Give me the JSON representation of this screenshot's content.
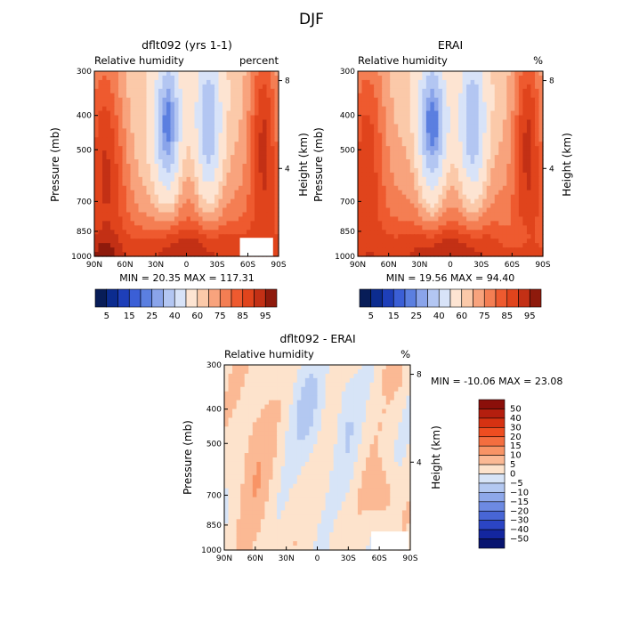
{
  "figure": {
    "title": "DJF"
  },
  "chart_data": [
    {
      "type": "heatmap",
      "panel_title": "dflt092 (yrs 1-1)",
      "left_title": "Relative humidity",
      "right_title": "percent",
      "ylabel": "Pressure (mb)",
      "ylabel_right": "Height (km)",
      "x": [
        -90,
        90
      ],
      "x_ticks": [
        "90N",
        "60N",
        "30N",
        "0",
        "30S",
        "60S",
        "90S"
      ],
      "y_ticks": [
        300,
        400,
        500,
        700,
        850,
        1000
      ],
      "y_right_ticks": [
        8,
        4
      ],
      "stats": "MIN =  20.35   MAX = 117.31",
      "min": 20.35,
      "max": 117.31,
      "colorbar": {
        "orientation": "horizontal",
        "levels": [
          5,
          10,
          15,
          20,
          25,
          30,
          40,
          50,
          60,
          65,
          70,
          75,
          80,
          85,
          90,
          95
        ],
        "labels": [
          "5",
          "15",
          "25",
          "40",
          "60",
          "75",
          "85",
          "95"
        ],
        "colors": [
          "#081d58",
          "#0c2c8f",
          "#1e3fb9",
          "#3b5fd6",
          "#5b7fe0",
          "#8aa4ea",
          "#b3c6f2",
          "#d8e3f8",
          "#fde4d2",
          "#fbc9a9",
          "#f8a37d",
          "#f47e53",
          "#ee5a2f",
          "#e0441c",
          "#c33015",
          "#8e1a0c"
        ]
      }
    },
    {
      "type": "heatmap",
      "panel_title": "ERAI",
      "left_title": "Relative humidity",
      "right_title": "%",
      "ylabel": "Pressure (mb)",
      "ylabel_right": "Height (km)",
      "x": [
        -90,
        90
      ],
      "x_ticks": [
        "90N",
        "60N",
        "30N",
        "0",
        "30S",
        "60S",
        "90S"
      ],
      "y_ticks": [
        300,
        400,
        500,
        700,
        850,
        1000
      ],
      "y_right_ticks": [
        8,
        4
      ],
      "stats": "MIN =  19.56   MAX =  94.40",
      "min": 19.56,
      "max": 94.4,
      "colorbar": {
        "orientation": "horizontal",
        "levels": [
          5,
          10,
          15,
          20,
          25,
          30,
          40,
          50,
          60,
          65,
          70,
          75,
          80,
          85,
          90,
          95
        ],
        "labels": [
          "5",
          "15",
          "25",
          "40",
          "60",
          "75",
          "85",
          "95"
        ],
        "colors": [
          "#081d58",
          "#0c2c8f",
          "#1e3fb9",
          "#3b5fd6",
          "#5b7fe0",
          "#8aa4ea",
          "#b3c6f2",
          "#d8e3f8",
          "#fde4d2",
          "#fbc9a9",
          "#f8a37d",
          "#f47e53",
          "#ee5a2f",
          "#e0441c",
          "#c33015",
          "#8e1a0c"
        ]
      }
    },
    {
      "type": "heatmap",
      "panel_title": "dflt092 - ERAI",
      "left_title": "Relative humidity",
      "right_title": "%",
      "ylabel": "Pressure (mb)",
      "ylabel_right": "Height (km)",
      "x": [
        -90,
        90
      ],
      "x_ticks": [
        "90N",
        "60N",
        "30N",
        "0",
        "30S",
        "60S",
        "90S"
      ],
      "y_ticks": [
        300,
        400,
        500,
        700,
        850,
        1000
      ],
      "y_right_ticks": [
        8,
        4
      ],
      "stats": "MIN = -10.06   MAX =  23.08",
      "min": -10.06,
      "max": 23.08,
      "colorbar": {
        "orientation": "vertical",
        "levels": [
          50,
          40,
          30,
          20,
          15,
          10,
          5,
          0,
          -5,
          -10,
          -15,
          -20,
          -30,
          -40,
          -50
        ],
        "labels": [
          "50",
          "40",
          "30",
          "20",
          "15",
          "10",
          "5",
          "0",
          "−5",
          "−10",
          "−15",
          "−20",
          "−30",
          "−40",
          "−50"
        ],
        "colors": [
          "#8b0f0a",
          "#b41e0e",
          "#d63212",
          "#ee4d20",
          "#f46e3f",
          "#f89466",
          "#fbb994",
          "#fde3cc",
          "#d7e4f7",
          "#b3c8f1",
          "#8ea8ea",
          "#6d8ae2",
          "#4866d6",
          "#2b45c4",
          "#13269f",
          "#081470"
        ]
      }
    }
  ]
}
